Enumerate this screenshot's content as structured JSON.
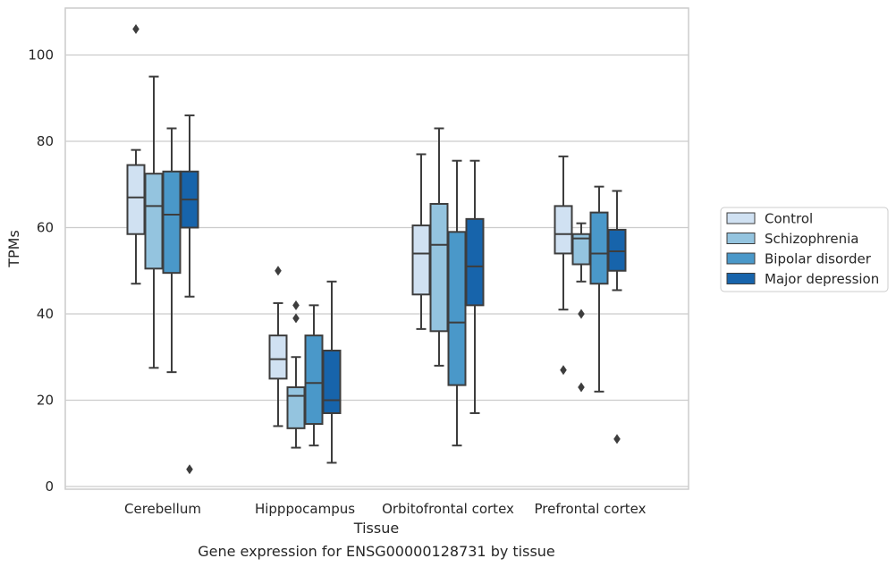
{
  "chart_data": {
    "type": "box",
    "title": "Gene expression for ENSG00000128731 by tissue",
    "xlabel": "Tissue",
    "ylabel": "TPMs",
    "ylim": [
      0,
      110
    ],
    "yticks": [
      0,
      20,
      40,
      60,
      80,
      100
    ],
    "grid": "horizontal",
    "legend_position": "right",
    "categories": [
      "Cerebellum",
      "Hipppocampus",
      "Orbitofrontal cortex",
      "Prefrontal cortex"
    ],
    "series": [
      {
        "name": "Control",
        "color": "#d0e1f2",
        "boxes": [
          {
            "whislo": 47,
            "q1": 58.5,
            "med": 67,
            "q3": 74.5,
            "whishi": 78,
            "fliers": [
              106
            ]
          },
          {
            "whislo": 14,
            "q1": 25,
            "med": 29.5,
            "q3": 35,
            "whishi": 42.5,
            "fliers": [
              50
            ]
          },
          {
            "whislo": 36.5,
            "q1": 44.5,
            "med": 54,
            "q3": 60.5,
            "whishi": 77,
            "fliers": []
          },
          {
            "whislo": 41,
            "q1": 54,
            "med": 58.5,
            "q3": 65,
            "whishi": 76.5,
            "fliers": [
              27
            ]
          }
        ]
      },
      {
        "name": "Schizophrenia",
        "color": "#94c4df",
        "boxes": [
          {
            "whislo": 27.5,
            "q1": 50.5,
            "med": 65,
            "q3": 72.5,
            "whishi": 95,
            "fliers": []
          },
          {
            "whislo": 9,
            "q1": 13.5,
            "med": 21,
            "q3": 23,
            "whishi": 30,
            "fliers": [
              39,
              42
            ]
          },
          {
            "whislo": 28,
            "q1": 36,
            "med": 56,
            "q3": 65.5,
            "whishi": 83,
            "fliers": []
          },
          {
            "whislo": 47.5,
            "q1": 51.5,
            "med": 57.5,
            "q3": 58.5,
            "whishi": 61,
            "fliers": [
              40,
              23
            ]
          }
        ]
      },
      {
        "name": "Bipolar disorder",
        "color": "#4a98c9",
        "boxes": [
          {
            "whislo": 26.5,
            "q1": 49.5,
            "med": 63,
            "q3": 73,
            "whishi": 83,
            "fliers": []
          },
          {
            "whislo": 9.5,
            "q1": 14.5,
            "med": 24,
            "q3": 35,
            "whishi": 42,
            "fliers": []
          },
          {
            "whislo": 9.5,
            "q1": 23.5,
            "med": 38,
            "q3": 59,
            "whishi": 75.5,
            "fliers": []
          },
          {
            "whislo": 22,
            "q1": 47,
            "med": 54,
            "q3": 63.5,
            "whishi": 69.5,
            "fliers": []
          }
        ]
      },
      {
        "name": "Major depression",
        "color": "#1764ab",
        "boxes": [
          {
            "whislo": 44,
            "q1": 60,
            "med": 66.5,
            "q3": 73,
            "whishi": 86,
            "fliers": [
              4
            ]
          },
          {
            "whislo": 5.5,
            "q1": 17,
            "med": 20,
            "q3": 31.5,
            "whishi": 47.5,
            "fliers": []
          },
          {
            "whislo": 17,
            "q1": 42,
            "med": 51,
            "q3": 62,
            "whishi": 75.5,
            "fliers": []
          },
          {
            "whislo": 45.5,
            "q1": 50,
            "med": 54.5,
            "q3": 59.5,
            "whishi": 68.5,
            "fliers": [
              11
            ]
          }
        ]
      }
    ]
  }
}
